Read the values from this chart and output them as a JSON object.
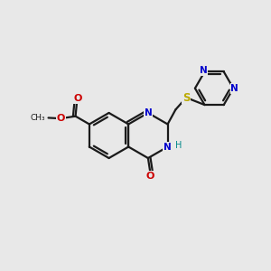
{
  "bg_color": "#e8e8e8",
  "bond_color": "#1a1a1a",
  "N_color": "#0000cc",
  "O_color": "#cc0000",
  "S_color": "#bbaa00",
  "H_color": "#008888",
  "line_width": 1.6,
  "figsize": [
    3.0,
    3.0
  ],
  "dpi": 100,
  "ring_r": 0.85,
  "xlim": [
    0,
    10
  ],
  "ylim": [
    0,
    10
  ]
}
